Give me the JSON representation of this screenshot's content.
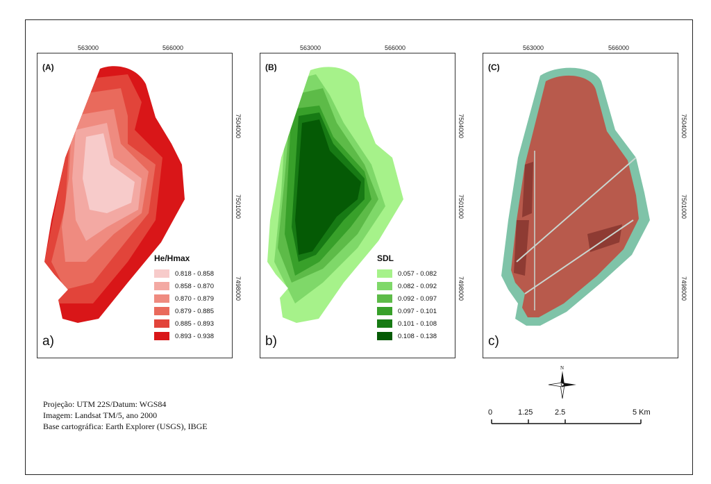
{
  "panels": [
    {
      "id": "A",
      "tag": "(A)",
      "letter": "a)",
      "x_ticks": [
        "563000",
        "566000"
      ],
      "y_ticks": [
        "7504000",
        "7501000",
        "7498000"
      ],
      "legend": {
        "title": "He/Hmax",
        "classes": [
          {
            "label": "0.818 - 0.858",
            "color": "#f7cbca"
          },
          {
            "label": "0.858 - 0.870",
            "color": "#f3a9a3"
          },
          {
            "label": "0.870 - 0.879",
            "color": "#ef8b80"
          },
          {
            "label": "0.879 - 0.885",
            "color": "#e96a5c"
          },
          {
            "label": "0.885 - 0.893",
            "color": "#e2443a"
          },
          {
            "label": "0.893 - 0.938",
            "color": "#d91618"
          }
        ]
      }
    },
    {
      "id": "B",
      "tag": "(B)",
      "letter": "b)",
      "x_ticks": [
        "563000",
        "566000"
      ],
      "y_ticks": [
        "7504000",
        "7501000",
        "7498000"
      ],
      "legend": {
        "title": "SDL",
        "classes": [
          {
            "label": "0.057 - 0.082",
            "color": "#a6f28a"
          },
          {
            "label": "0.082 - 0.092",
            "color": "#7fd869"
          },
          {
            "label": "0.092 - 0.097",
            "color": "#5dbb48"
          },
          {
            "label": "0.097 - 0.101",
            "color": "#38a02a"
          },
          {
            "label": "0.101 - 0.108",
            "color": "#177a14"
          },
          {
            "label": "0.108 - 0.138",
            "color": "#055a05"
          }
        ]
      }
    },
    {
      "id": "C",
      "tag": "(C)",
      "letter": "c)",
      "x_ticks": [
        "563000",
        "566000"
      ],
      "y_ticks": [
        "7504000",
        "7501000",
        "7498000"
      ],
      "image_colors": {
        "base": "#b85a4c",
        "dark": "#8e3b33",
        "fringe": "#7fc3a8",
        "road": "#c9d6d0"
      }
    }
  ],
  "north_arrow": {
    "label": "N"
  },
  "scale_bar": {
    "labels": [
      "0",
      "1.25",
      "2.5",
      "5 Km"
    ]
  },
  "credits": [
    "Projeção: UTM 22S/Datum: WGS84",
    "Imagem: Landsat TM/5, ano 2000",
    "Base cartográfica: Earth Explorer (USGS), IBGE"
  ]
}
